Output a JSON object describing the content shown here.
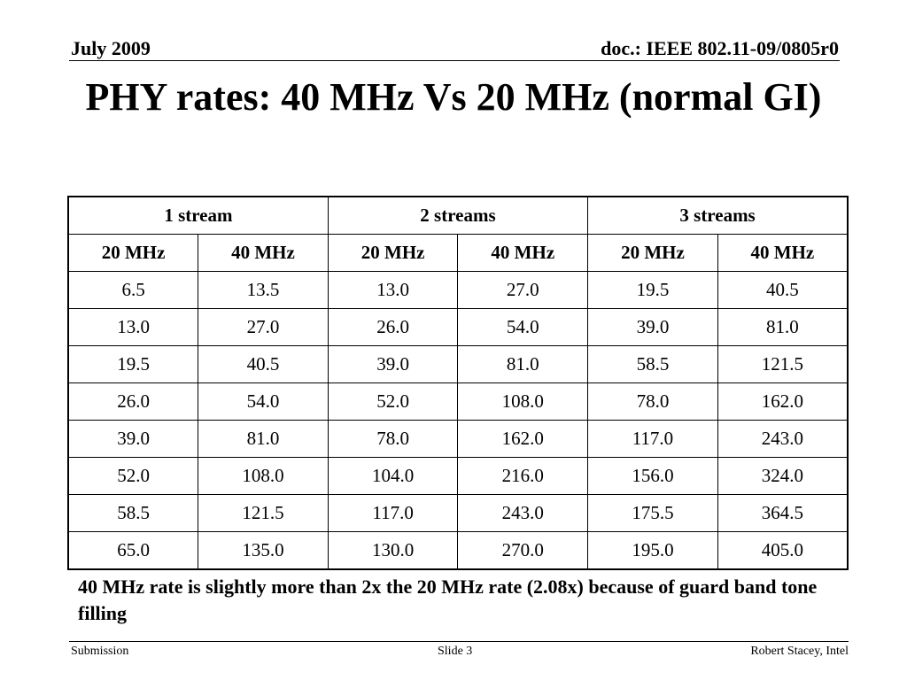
{
  "header": {
    "date": "July 2009",
    "doc_id": "doc.: IEEE 802.11-09/0805r0"
  },
  "title": "PHY rates: 40 MHz Vs 20 MHz (normal GI)",
  "table": {
    "stream_headers": [
      "1 stream",
      "2 streams",
      "3 streams"
    ],
    "bandwidth_headers": [
      "20 MHz",
      "40 MHz",
      "20 MHz",
      "40 MHz",
      "20 MHz",
      "40 MHz"
    ],
    "rows": [
      [
        "6.5",
        "13.5",
        "13.0",
        "27.0",
        "19.5",
        "40.5"
      ],
      [
        "13.0",
        "27.0",
        "26.0",
        "54.0",
        "39.0",
        "81.0"
      ],
      [
        "19.5",
        "40.5",
        "39.0",
        "81.0",
        "58.5",
        "121.5"
      ],
      [
        "26.0",
        "54.0",
        "52.0",
        "108.0",
        "78.0",
        "162.0"
      ],
      [
        "39.0",
        "81.0",
        "78.0",
        "162.0",
        "117.0",
        "243.0"
      ],
      [
        "52.0",
        "108.0",
        "104.0",
        "216.0",
        "156.0",
        "324.0"
      ],
      [
        "58.5",
        "121.5",
        "117.0",
        "243.0",
        "175.5",
        "364.5"
      ],
      [
        "65.0",
        "135.0",
        "130.0",
        "270.0",
        "195.0",
        "405.0"
      ]
    ]
  },
  "note": "40 MHz rate is slightly more than 2x the 20 MHz rate (2.08x) because of guard band tone filling",
  "footer": {
    "left": "Submission",
    "center": "Slide 3",
    "right": "Robert Stacey, Intel"
  }
}
